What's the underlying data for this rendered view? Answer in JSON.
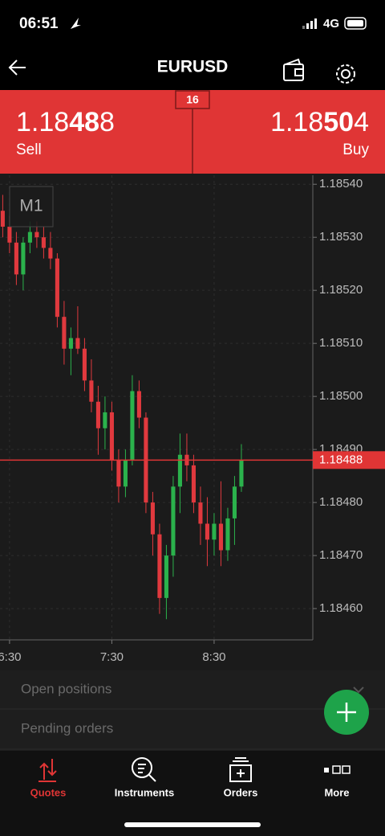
{
  "status_bar": {
    "time": "06:51",
    "network": "4G"
  },
  "header": {
    "title": "EURUSD"
  },
  "quote": {
    "spread": "16",
    "sell": {
      "price": {
        "lead": "1.18",
        "big": "48",
        "tail": "8"
      },
      "label": "Sell"
    },
    "buy": {
      "price": {
        "lead": "1.18",
        "big": "50",
        "tail": "4"
      },
      "label": "Buy"
    }
  },
  "chart_data": {
    "type": "candlestick",
    "timeframe": "M1",
    "up_color": "#2bb24c",
    "down_color": "#e0393e",
    "grid": true,
    "x": [
      386,
      390,
      394,
      398,
      402,
      406,
      410,
      414,
      418,
      422,
      426,
      430,
      434,
      438,
      442,
      446,
      450,
      454,
      458,
      462,
      466,
      470,
      474,
      478,
      482,
      486,
      490,
      494,
      498,
      502,
      506,
      510,
      514,
      518,
      522,
      526
    ],
    "open": [
      1.18535,
      1.18532,
      1.18529,
      1.18523,
      1.18529,
      1.18531,
      1.1853,
      1.18528,
      1.18526,
      1.18515,
      1.18509,
      1.18511,
      1.18509,
      1.18503,
      1.18499,
      1.18494,
      1.18497,
      1.18488,
      1.18483,
      1.18488,
      1.18501,
      1.18496,
      1.1848,
      1.18474,
      1.18462,
      1.1847,
      1.18483,
      1.18489,
      1.18487,
      1.1848,
      1.18476,
      1.18473,
      1.18476,
      1.18471,
      1.18477,
      1.18483
    ],
    "high": [
      1.18538,
      1.18534,
      1.18531,
      1.1853,
      1.18533,
      1.18533,
      1.18532,
      1.18531,
      1.18527,
      1.18518,
      1.18513,
      1.18517,
      1.18511,
      1.18507,
      1.18502,
      1.185,
      1.18499,
      1.1849,
      1.1849,
      1.18504,
      1.18503,
      1.18497,
      1.18482,
      1.18476,
      1.18472,
      1.18485,
      1.18493,
      1.18493,
      1.18489,
      1.18483,
      1.18481,
      1.18478,
      1.18484,
      1.18479,
      1.18485,
      1.18491
    ],
    "low": [
      1.1853,
      1.18527,
      1.18521,
      1.1852,
      1.18527,
      1.18528,
      1.18526,
      1.18524,
      1.18513,
      1.18506,
      1.18504,
      1.18508,
      1.18501,
      1.18497,
      1.18489,
      1.1849,
      1.18486,
      1.1848,
      1.18481,
      1.18487,
      1.18494,
      1.18478,
      1.1847,
      1.18459,
      1.18458,
      1.18466,
      1.18478,
      1.18484,
      1.18478,
      1.18472,
      1.18468,
      1.1847,
      1.18468,
      1.18469,
      1.18472,
      1.18482
    ],
    "close": [
      1.18532,
      1.18529,
      1.18523,
      1.18529,
      1.18531,
      1.1853,
      1.18528,
      1.18526,
      1.18515,
      1.18509,
      1.18511,
      1.18509,
      1.18503,
      1.18499,
      1.18494,
      1.18497,
      1.18488,
      1.18483,
      1.18488,
      1.18501,
      1.18496,
      1.1848,
      1.18474,
      1.18462,
      1.1847,
      1.18483,
      1.18489,
      1.18487,
      1.1848,
      1.18476,
      1.18473,
      1.18476,
      1.18471,
      1.18477,
      1.18483,
      1.18488
    ],
    "xlim": [
      384.4,
      567.9
    ],
    "xticks": [
      {
        "value": 390,
        "label": "6:30"
      },
      {
        "value": 450,
        "label": "7:30"
      },
      {
        "value": 510,
        "label": "8:30"
      }
    ],
    "ylim": [
      1.184541,
      1.185417
    ],
    "yticks": [
      {
        "value": 1.1854,
        "label": "1.18540"
      },
      {
        "value": 1.1853,
        "label": "1.18530"
      },
      {
        "value": 1.1852,
        "label": "1.18520"
      },
      {
        "value": 1.1851,
        "label": "1.18510"
      },
      {
        "value": 1.185,
        "label": "1.18500"
      },
      {
        "value": 1.1849,
        "label": "1.18490"
      },
      {
        "value": 1.1848,
        "label": "1.18480"
      },
      {
        "value": 1.1847,
        "label": "1.18470"
      },
      {
        "value": 1.1846,
        "label": "1.18460"
      }
    ],
    "current_price": {
      "value": 1.18488,
      "label": "1.18488"
    }
  },
  "panels": [
    "Open positions",
    "Pending orders"
  ],
  "tabs": [
    {
      "label": "Quotes",
      "active": true
    },
    {
      "label": "Instruments",
      "active": false
    },
    {
      "label": "Orders",
      "active": false
    },
    {
      "label": "More",
      "active": false
    }
  ]
}
